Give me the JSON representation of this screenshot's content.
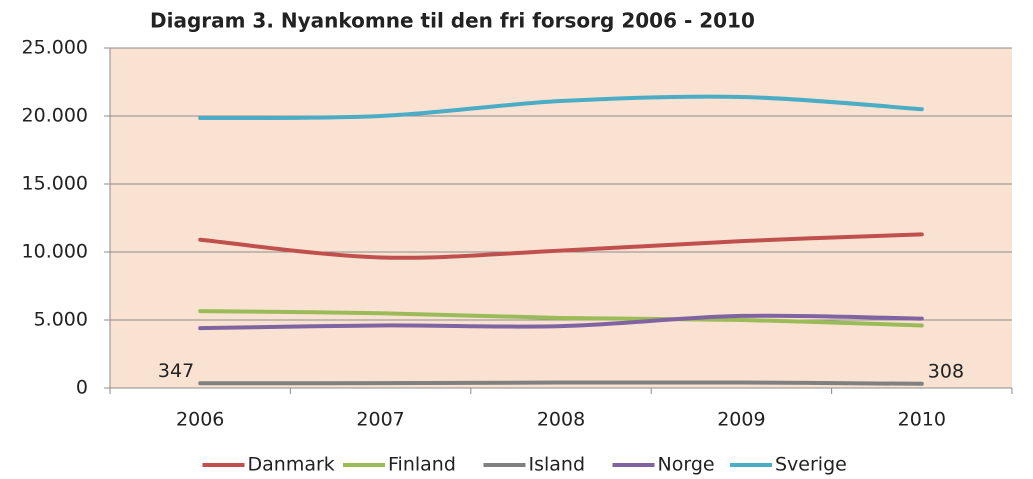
{
  "chart_data": {
    "type": "line",
    "title": "Diagram 3. Nyankomne til den fri forsorg 2006 - 2010",
    "categories": [
      "2006",
      "2007",
      "2008",
      "2009",
      "2010"
    ],
    "series": [
      {
        "name": "Danmark",
        "color": "#c0504d",
        "values": [
          10900,
          9600,
          10100,
          10800,
          11300
        ]
      },
      {
        "name": "Finland",
        "color": "#9bbb59",
        "values": [
          5650,
          5500,
          5150,
          5000,
          4600
        ]
      },
      {
        "name": "Island",
        "color": "#808080",
        "values": [
          347,
          360,
          400,
          400,
          308
        ],
        "value_labels": [
          "347",
          null,
          null,
          null,
          "308"
        ]
      },
      {
        "name": "Norge",
        "color": "#8064a2",
        "values": [
          4400,
          4600,
          4550,
          5300,
          5100
        ]
      },
      {
        "name": "Sverige",
        "color": "#4bacc6",
        "values": [
          19850,
          20000,
          21100,
          21400,
          20500
        ]
      }
    ],
    "ylim": [
      0,
      25000
    ],
    "yticks": [
      0,
      {
        "value": 5000,
        "label": "5.000"
      },
      {
        "value": 10000,
        "label": "10.000"
      },
      {
        "value": 15000,
        "label": "15.000"
      },
      {
        "value": 20000,
        "label": "20.000"
      },
      {
        "value": 25000,
        "label": "25.000"
      }
    ],
    "grid": true,
    "smooth": true,
    "legend": "bottom",
    "plot_background": "#fae2d2"
  }
}
